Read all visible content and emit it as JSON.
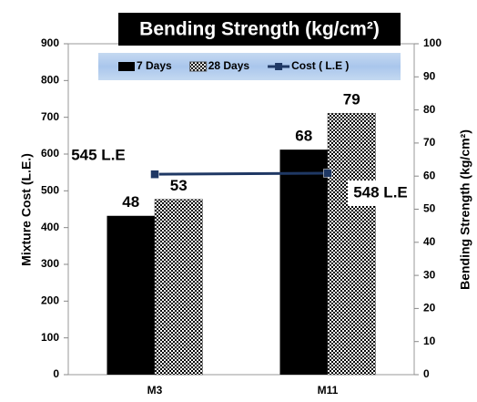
{
  "chart_data": {
    "type": "bar",
    "title": "Bending Strength (kg/cm²)",
    "y_label": "Mixture Cost  (L.E.)",
    "y2_label": "Bending Strength (kg/cm²)",
    "categories": [
      "M3",
      "M11"
    ],
    "series": [
      {
        "name": "7 Days",
        "type": "bar",
        "axis": "y2",
        "color": "#000000",
        "values": [
          48,
          68
        ]
      },
      {
        "name": "28 Days",
        "type": "bar",
        "axis": "y2",
        "color": "#000000",
        "pattern": "checker",
        "values": [
          53,
          79
        ]
      },
      {
        "name": "Cost ( L.E )",
        "type": "line",
        "axis": "y",
        "color": "#1f3864",
        "values": [
          545,
          548
        ],
        "value_labels": [
          "545 L.E",
          "548 L.E"
        ]
      }
    ],
    "ylim": [
      0,
      900
    ],
    "yticks": [
      0,
      100,
      200,
      300,
      400,
      500,
      600,
      700,
      800,
      900
    ],
    "y2lim": [
      0,
      100
    ],
    "y2ticks": [
      0,
      10,
      20,
      30,
      40,
      50,
      60,
      70,
      80,
      90,
      100
    ],
    "legend": "top",
    "grid": false
  }
}
